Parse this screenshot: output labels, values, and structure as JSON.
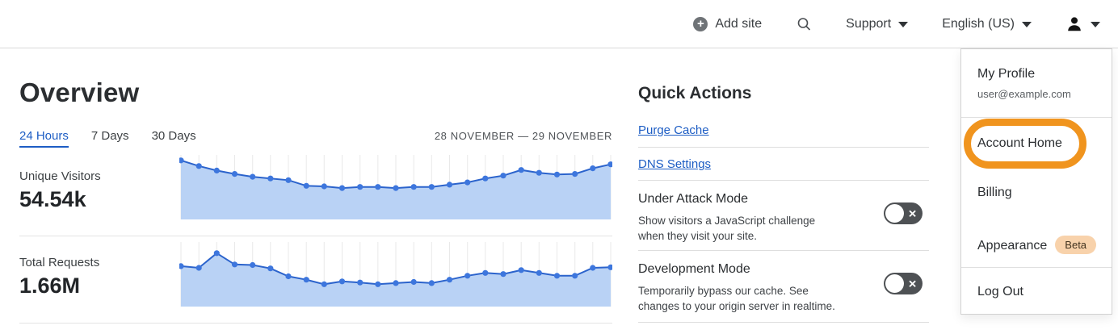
{
  "header": {
    "add_site_label": "Add site",
    "support_label": "Support",
    "language_label": "English (US)"
  },
  "overview": {
    "title": "Overview",
    "tabs": [
      {
        "label": "24 Hours",
        "active": true
      },
      {
        "label": "7 Days",
        "active": false
      },
      {
        "label": "30 Days",
        "active": false
      }
    ],
    "date_range": "28 NOVEMBER — 29 NOVEMBER",
    "metrics": [
      {
        "label": "Unique Visitors",
        "value": "54.54k"
      },
      {
        "label": "Total Requests",
        "value": "1.66M"
      }
    ]
  },
  "quick_actions": {
    "title": "Quick Actions",
    "links": [
      "Purge Cache",
      "DNS Settings"
    ],
    "toggles": [
      {
        "title": "Under Attack Mode",
        "description": "Show visitors a JavaScript challenge when they visit your site.",
        "state": "off"
      },
      {
        "title": "Development Mode",
        "description": "Temporarily bypass our cache. See changes to your origin server in realtime.",
        "state": "off"
      }
    ]
  },
  "account_menu": {
    "profile_label": "My Profile",
    "email": "user@example.com",
    "account_home_label": "Account Home",
    "billing_label": "Billing",
    "appearance_label": "Appearance",
    "appearance_badge": "Beta",
    "logout_label": "Log Out",
    "annotation": "orange highlight circle around Account Home"
  },
  "chart_data": [
    {
      "type": "area",
      "title": "Unique Visitors (24 Hours)",
      "total": "54.54k",
      "x": "hourly points, 28 November — 29 November",
      "values": [
        96,
        86,
        78,
        72,
        67,
        64,
        61,
        51,
        50,
        47,
        49,
        49,
        47,
        49,
        49,
        53,
        57,
        64,
        69,
        79,
        74,
        71,
        72,
        82,
        89
      ],
      "ylim": [
        0,
        100
      ],
      "axes_visible": false,
      "grid": "vertical-only"
    },
    {
      "type": "area",
      "title": "Total Requests (24 Hours)",
      "total": "1.66M",
      "x": "hourly points, 28 November — 29 November",
      "values": [
        63,
        60,
        86,
        66,
        65,
        59,
        45,
        39,
        31,
        36,
        34,
        31,
        33,
        35,
        33,
        39,
        46,
        51,
        49,
        56,
        51,
        46,
        46,
        60,
        61
      ],
      "ylim": [
        0,
        100
      ],
      "axes_visible": false,
      "grid": "vertical-only"
    }
  ],
  "colors": {
    "accent_blue": "#1d5dc4",
    "chart_fill": "#b9d2f5",
    "chart_line": "#2b63cc",
    "chart_dot": "#3d76dd",
    "gridline": "#e9e9e9",
    "toggle_bg": "#4e5154",
    "annotation_orange": "#f0941e",
    "badge_bg": "#f8d2ab"
  }
}
